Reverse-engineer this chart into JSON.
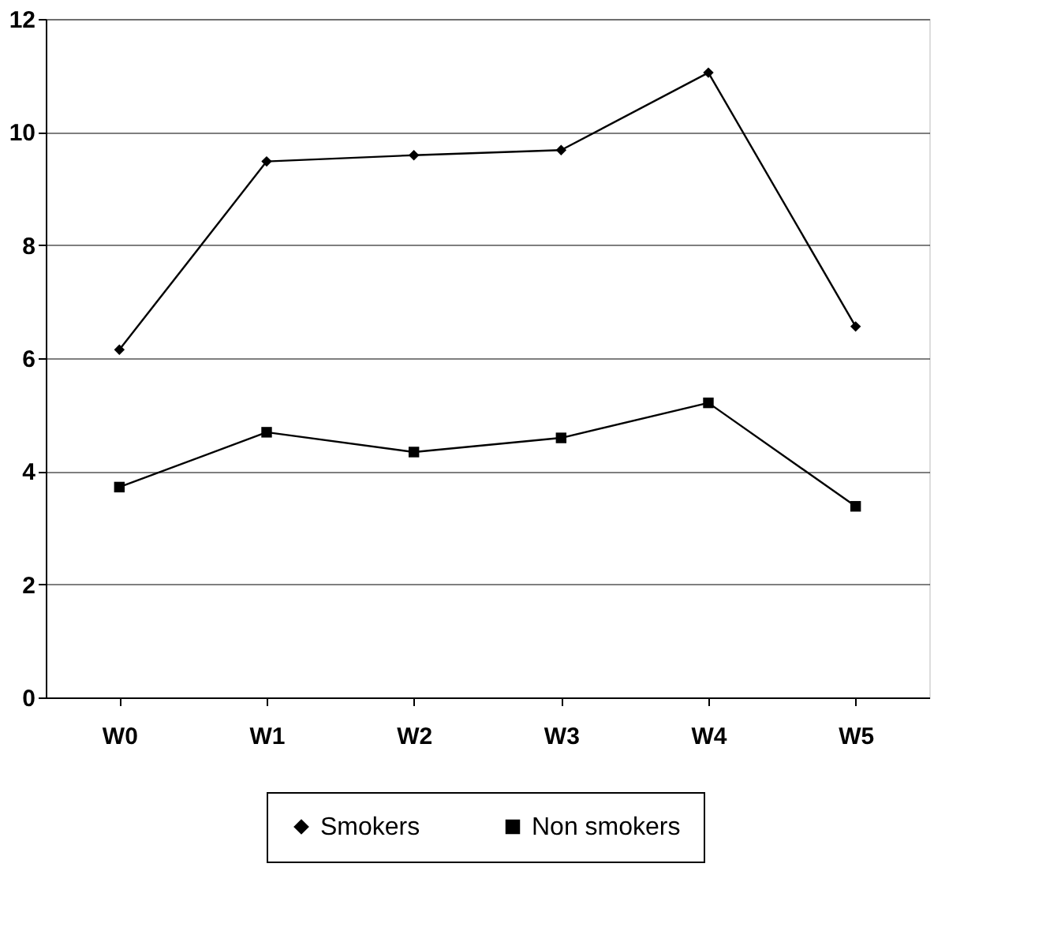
{
  "chart_data": {
    "type": "line",
    "categories": [
      "W0",
      "W1",
      "W2",
      "W3",
      "W4",
      "W5"
    ],
    "series": [
      {
        "name": "Smokers",
        "color": "#000000",
        "marker": "diamond",
        "values": [
          6.15,
          9.48,
          9.59,
          9.68,
          11.05,
          6.56
        ]
      },
      {
        "name": "Non smokers",
        "color": "#000000",
        "marker": "square",
        "values": [
          3.72,
          4.69,
          4.34,
          4.59,
          5.21,
          3.38
        ]
      }
    ],
    "ylim": [
      0,
      12
    ],
    "yticks": [
      0,
      2,
      4,
      6,
      8,
      10,
      12
    ],
    "grid": "y",
    "legend": "bottom",
    "line_style": "solid"
  }
}
